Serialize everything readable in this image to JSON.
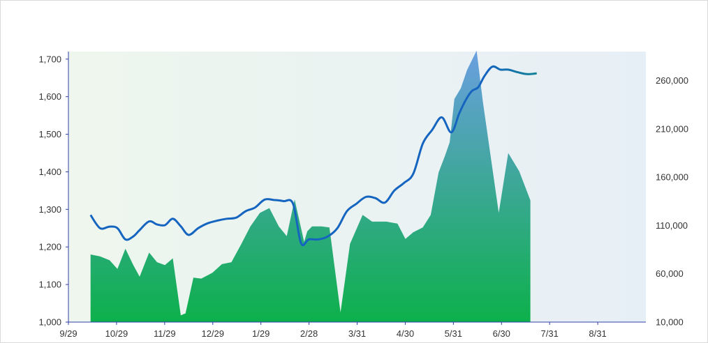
{
  "chart_data": {
    "type": "area",
    "x_ticks": [
      "9/29",
      "10/29",
      "11/29",
      "12/29",
      "1/29",
      "2/28",
      "3/31",
      "4/30",
      "5/31",
      "6/30",
      "7/31",
      "8/31"
    ],
    "y_left_ticks": [
      "1,000",
      "1,100",
      "1,200",
      "1,300",
      "1,400",
      "1,500",
      "1,600",
      "1,700"
    ],
    "y_right_ticks": [
      "10,000",
      "60,000",
      "110,000",
      "160,000",
      "210,000",
      "260,000"
    ],
    "y_left_range": [
      1000,
      1720
    ],
    "y_right_range": [
      10000,
      290000
    ],
    "x_range": [
      0,
      365
    ],
    "series": [
      {
        "axis": "right",
        "kind": "area",
        "color_top": "#6a9fe0",
        "color_bottom": "#0db04b",
        "x": [
          14,
          20,
          26,
          31,
          36,
          41,
          45,
          51,
          56,
          61,
          66,
          71,
          74,
          79,
          84,
          91,
          97,
          103,
          109,
          115,
          121,
          127,
          133,
          138,
          143,
          149,
          151,
          154,
          160,
          165,
          172,
          178,
          186,
          192,
          201,
          208,
          213,
          218,
          224,
          229,
          234,
          238,
          241,
          244,
          248,
          252,
          258,
          262,
          272,
          278,
          285,
          292
        ],
        "values": [
          80000,
          78000,
          74000,
          65000,
          86000,
          69000,
          57000,
          82000,
          72000,
          69000,
          76000,
          17000,
          19000,
          56000,
          55000,
          61000,
          70000,
          72000,
          90000,
          109000,
          123000,
          128000,
          109000,
          99000,
          137000,
          93000,
          104000,
          109000,
          109000,
          108000,
          20000,
          91000,
          121000,
          114000,
          114000,
          112000,
          96000,
          103000,
          108000,
          121000,
          165000,
          182000,
          196000,
          241000,
          252000,
          271000,
          291000,
          238000,
          123000,
          185000,
          166000,
          136000
        ]
      },
      {
        "axis": "left",
        "kind": "line",
        "color_start": "#1565c0",
        "color_end": "#0db04b",
        "x": [
          14,
          20,
          26,
          31,
          36,
          41,
          45,
          51,
          56,
          61,
          66,
          71,
          76,
          82,
          88,
          94,
          100,
          106,
          112,
          118,
          124,
          130,
          136,
          142,
          147,
          152,
          158,
          164,
          170,
          176,
          182,
          188,
          194,
          200,
          206,
          212,
          218,
          224,
          230,
          236,
          242,
          247,
          251,
          255,
          259,
          263,
          268,
          273,
          278,
          284,
          290,
          296
        ],
        "values": [
          1285,
          1250,
          1254,
          1250,
          1220,
          1228,
          1245,
          1268,
          1260,
          1258,
          1275,
          1255,
          1232,
          1250,
          1263,
          1270,
          1275,
          1278,
          1295,
          1305,
          1326,
          1325,
          1322,
          1315,
          1210,
          1220,
          1220,
          1228,
          1250,
          1295,
          1315,
          1333,
          1330,
          1318,
          1350,
          1370,
          1395,
          1475,
          1512,
          1545,
          1505,
          1555,
          1590,
          1615,
          1625,
          1655,
          1680,
          1672,
          1672,
          1665,
          1660,
          1662
        ]
      }
    ]
  }
}
